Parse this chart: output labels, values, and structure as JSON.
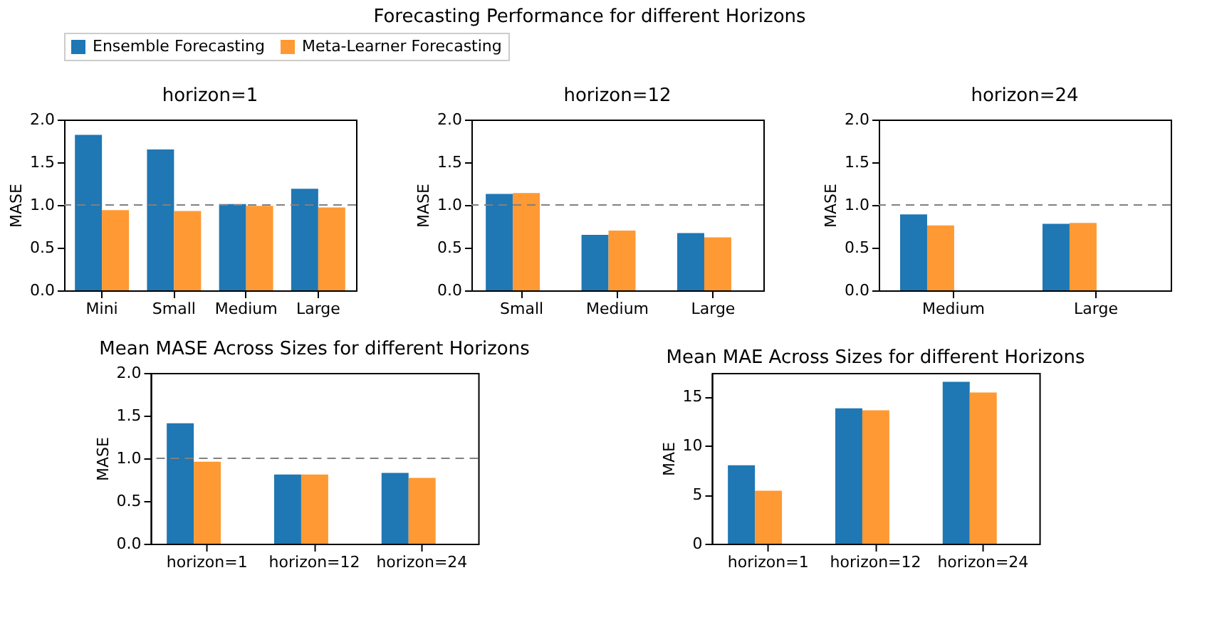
{
  "chart_data": [
    {
      "type": "bar",
      "title": "horizon=1",
      "ylabel": "MASE",
      "annotations": [
        "Forecasting Performance for different Horizons"
      ],
      "legend": "top",
      "grid": false,
      "categories": [
        "Mini",
        "Small",
        "Medium",
        "Large"
      ],
      "ylim": [
        0,
        2
      ],
      "yticks": [
        {
          "value": 0,
          "label": "0.0"
        },
        0.5,
        {
          "value": 1,
          "label": "1.0"
        },
        1.5,
        {
          "value": 2,
          "label": "2.0"
        }
      ],
      "series": [
        {
          "name": "Ensemble Forecasting",
          "color": "#1f77b4",
          "values": [
            1.82,
            1.65,
            1.01,
            1.19
          ]
        },
        {
          "name": "Meta-Learner Forecasting",
          "color": "#ff9933",
          "values": [
            0.94,
            0.93,
            0.99,
            0.97
          ]
        }
      ],
      "ref_lines": [
        {
          "axis": "y",
          "value": 1.0,
          "color": "#808080",
          "line_style": "dashed"
        }
      ]
    },
    {
      "type": "bar",
      "title": "horizon=12",
      "ylabel": "MASE",
      "grid": false,
      "categories": [
        "Small",
        "Medium",
        "Large"
      ],
      "ylim": [
        0,
        2
      ],
      "yticks": [
        {
          "value": 0,
          "label": "0.0"
        },
        0.5,
        {
          "value": 1,
          "label": "1.0"
        },
        1.5,
        {
          "value": 2,
          "label": "2.0"
        }
      ],
      "series": [
        {
          "name": "Ensemble Forecasting",
          "color": "#1f77b4",
          "values": [
            1.13,
            0.65,
            0.67
          ]
        },
        {
          "name": "Meta-Learner Forecasting",
          "color": "#ff9933",
          "values": [
            1.14,
            0.7,
            0.62
          ]
        }
      ],
      "ref_lines": [
        {
          "axis": "y",
          "value": 1.0,
          "color": "#808080",
          "line_style": "dashed"
        }
      ]
    },
    {
      "type": "bar",
      "title": "horizon=24",
      "ylabel": "MASE",
      "grid": false,
      "categories": [
        "Medium",
        "Large"
      ],
      "ylim": [
        0,
        2
      ],
      "yticks": [
        {
          "value": 0,
          "label": "0.0"
        },
        0.5,
        {
          "value": 1,
          "label": "1.0"
        },
        1.5,
        {
          "value": 2,
          "label": "2.0"
        }
      ],
      "series": [
        {
          "name": "Ensemble Forecasting",
          "color": "#1f77b4",
          "values": [
            0.89,
            0.78
          ]
        },
        {
          "name": "Meta-Learner Forecasting",
          "color": "#ff9933",
          "values": [
            0.76,
            0.79
          ]
        }
      ],
      "ref_lines": [
        {
          "axis": "y",
          "value": 1.0,
          "color": "#808080",
          "line_style": "dashed"
        }
      ]
    },
    {
      "type": "bar",
      "title": "Mean MASE Across Sizes for different Horizons",
      "ylabel": "MASE",
      "grid": false,
      "categories": [
        "horizon=1",
        "horizon=12",
        "horizon=24"
      ],
      "ylim": [
        0,
        2
      ],
      "yticks": [
        {
          "value": 0,
          "label": "0.0"
        },
        0.5,
        {
          "value": 1,
          "label": "1.0"
        },
        1.5,
        {
          "value": 2,
          "label": "2.0"
        }
      ],
      "series": [
        {
          "name": "Ensemble Forecasting",
          "color": "#1f77b4",
          "values": [
            1.41,
            0.81,
            0.83
          ]
        },
        {
          "name": "Meta-Learner Forecasting",
          "color": "#ff9933",
          "values": [
            0.96,
            0.81,
            0.77
          ]
        }
      ],
      "ref_lines": [
        {
          "axis": "y",
          "value": 1.0,
          "color": "#808080",
          "line_style": "dashed"
        }
      ]
    },
    {
      "type": "bar",
      "title": "Mean MAE Across Sizes for different Horizons",
      "ylabel": "MAE",
      "grid": false,
      "categories": [
        "horizon=1",
        "horizon=12",
        "horizon=24"
      ],
      "ylim": [
        0,
        17.4
      ],
      "yticks": [
        0,
        5,
        10,
        15
      ],
      "series": [
        {
          "name": "Ensemble Forecasting",
          "color": "#1f77b4",
          "values": [
            8.0,
            13.8,
            16.5
          ]
        },
        {
          "name": "Meta-Learner Forecasting",
          "color": "#ff9933",
          "values": [
            5.4,
            13.6,
            15.4
          ]
        }
      ]
    }
  ]
}
